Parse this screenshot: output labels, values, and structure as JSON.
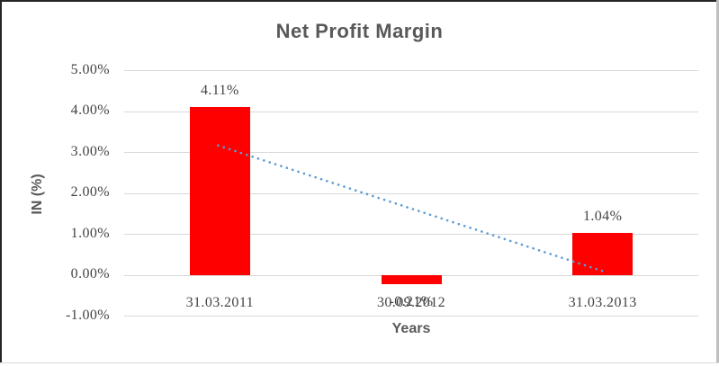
{
  "chart_data": {
    "type": "bar",
    "title": "Net Profit Margin",
    "xlabel": "Years",
    "ylabel": "IN (%)",
    "categories": [
      "31.03.2011",
      "30.09.2012",
      "31.03.2013"
    ],
    "series": [
      {
        "name": "Net Profit Margin",
        "values": [
          4.11,
          -0.21,
          1.04
        ],
        "data_labels": [
          "4.11%",
          "-0.21%",
          "1.04%"
        ],
        "color": "#FF0000"
      }
    ],
    "ylim": [
      -1,
      5
    ],
    "yticks": {
      "values": [
        5,
        4,
        3,
        2,
        1,
        0,
        -1
      ],
      "labels": [
        "5.00%",
        "4.00%",
        "3.00%",
        "2.00%",
        "1.00%",
        "0.00%",
        "-1.00%"
      ]
    },
    "grid": true,
    "legend": "none",
    "trendline": {
      "type": "linear",
      "style": "dotted",
      "color": "#5B9BD5",
      "start_value": 3.17,
      "end_value": 0.1
    }
  },
  "colors": {
    "bar": "#FF0000",
    "trendline": "#5B9BD5",
    "gridline": "#D9D9D9",
    "title_text": "#595959",
    "label_text": "#444444",
    "border_dark": "#262626",
    "border_right": "#BFBFBF",
    "border_bottom": "#D9D9D9"
  }
}
